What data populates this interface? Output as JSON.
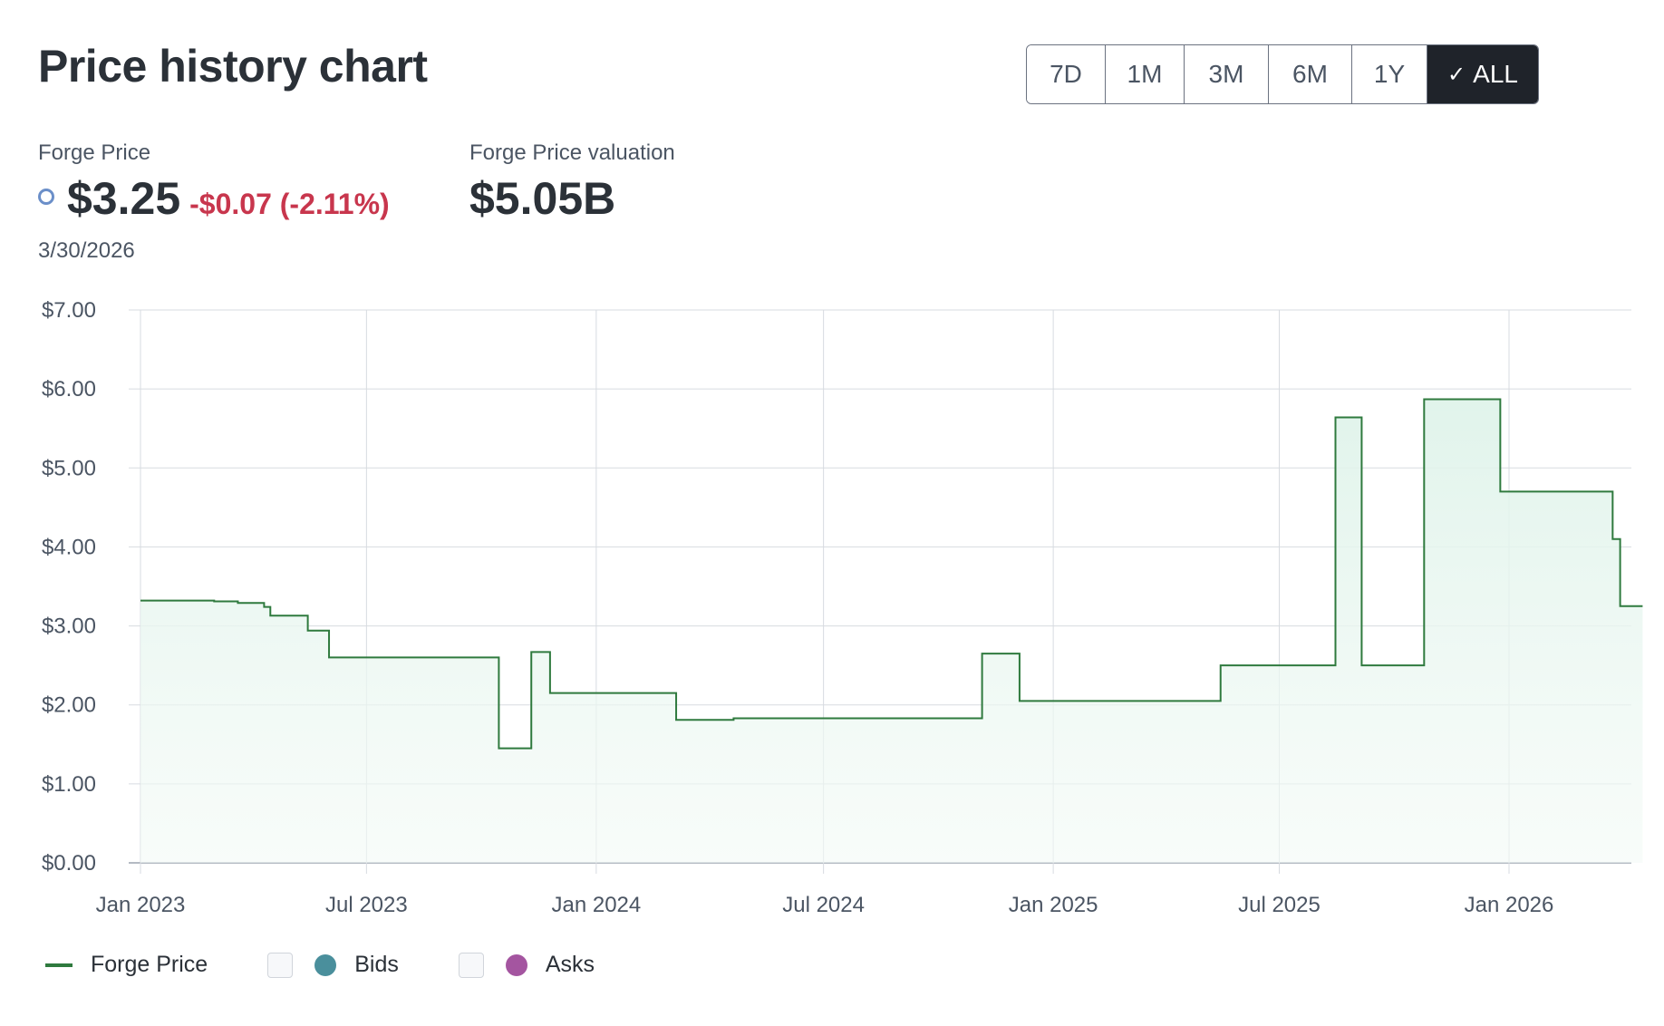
{
  "header": {
    "title": "Price history chart"
  },
  "ranges": [
    {
      "label": "7D",
      "active": false
    },
    {
      "label": "1M",
      "active": false
    },
    {
      "label": "3M",
      "active": false
    },
    {
      "label": "6M",
      "active": false
    },
    {
      "label": "1Y",
      "active": false
    },
    {
      "label": "ALL",
      "active": true
    }
  ],
  "stats": {
    "price_label": "Forge Price",
    "price_value": "$3.25",
    "price_change": "-$0.07 (-2.11%)",
    "valuation_label": "Forge Price valuation",
    "valuation_value": "$5.05B",
    "date": "3/30/2026"
  },
  "colors": {
    "line": "#2f7a3e",
    "fill_top": "#dff3ea",
    "negative": "#c8364d",
    "bids": "#4a8f9c",
    "asks": "#a455a0",
    "active_button": "#1f232a"
  },
  "legend": [
    {
      "label": "Forge Price",
      "kind": "line",
      "color": "#2f7a3e"
    },
    {
      "label": "Bids",
      "kind": "dot",
      "color": "#4a8f9c"
    },
    {
      "label": "Asks",
      "kind": "dot",
      "color": "#a455a0"
    }
  ],
  "chart_data": {
    "type": "area",
    "title": "",
    "xlabel": "",
    "ylabel": "",
    "ylim": [
      0,
      7
    ],
    "xlim": [
      "2023-01-01",
      "2026-04-30"
    ],
    "y_ticks": [
      "$0.00",
      "$1.00",
      "$2.00",
      "$3.00",
      "$4.00",
      "$5.00",
      "$6.00",
      "$7.00"
    ],
    "x_ticks": [
      {
        "date": "2023-01-01",
        "label": "Jan 2023"
      },
      {
        "date": "2023-07-01",
        "label": "Jul 2023"
      },
      {
        "date": "2024-01-01",
        "label": "Jan 2024"
      },
      {
        "date": "2024-07-01",
        "label": "Jul 2024"
      },
      {
        "date": "2025-01-01",
        "label": "Jan 2025"
      },
      {
        "date": "2025-07-01",
        "label": "Jul 2025"
      },
      {
        "date": "2026-01-01",
        "label": "Jan 2026"
      }
    ],
    "grid": true,
    "step": true,
    "series": [
      {
        "name": "Forge Price",
        "points": [
          [
            "2023-01-01",
            3.32
          ],
          [
            "2023-03-01",
            3.31
          ],
          [
            "2023-03-20",
            3.29
          ],
          [
            "2023-04-10",
            3.24
          ],
          [
            "2023-04-15",
            3.13
          ],
          [
            "2023-05-15",
            2.94
          ],
          [
            "2023-06-01",
            2.6
          ],
          [
            "2023-10-15",
            1.45
          ],
          [
            "2023-11-10",
            2.67
          ],
          [
            "2023-11-25",
            2.15
          ],
          [
            "2024-03-05",
            1.81
          ],
          [
            "2024-04-20",
            1.83
          ],
          [
            "2024-11-05",
            2.65
          ],
          [
            "2024-12-05",
            2.05
          ],
          [
            "2025-05-15",
            2.5
          ],
          [
            "2025-08-15",
            5.64
          ],
          [
            "2025-09-05",
            2.5
          ],
          [
            "2025-10-25",
            5.87
          ],
          [
            "2025-12-25",
            4.7
          ],
          [
            "2026-03-25",
            4.1
          ],
          [
            "2026-03-31",
            3.25
          ],
          [
            "2026-04-18",
            3.25
          ]
        ]
      }
    ]
  }
}
